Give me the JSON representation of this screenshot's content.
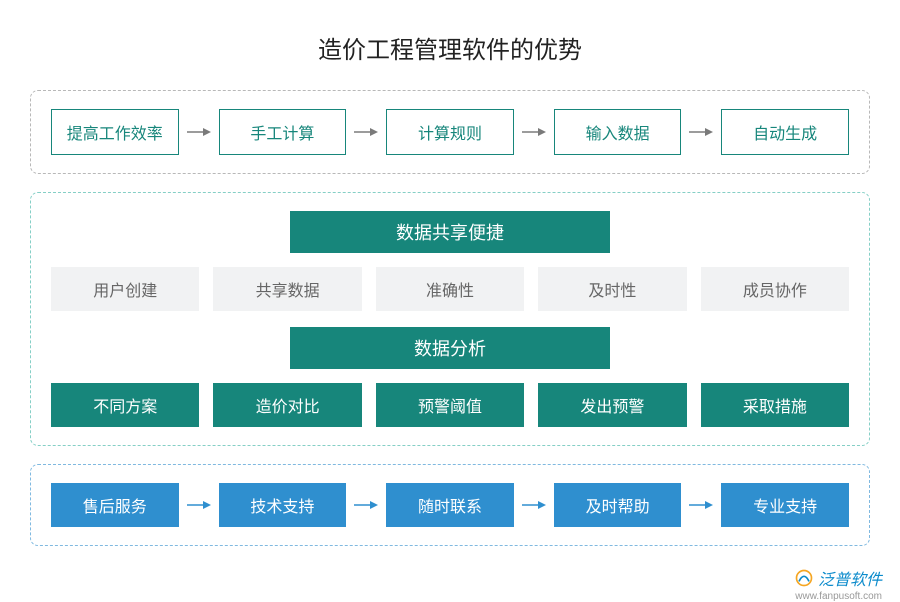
{
  "title": "造价工程管理软件的优势",
  "colors": {
    "teal": "#17867b",
    "teal_light_border": "#85cfc6",
    "grey_bg": "#f1f2f3",
    "grey_text": "#666666",
    "blue": "#2f8fcf",
    "blue_border": "#7fb9e0",
    "arrow_grey": "#7a7a7a",
    "arrow_blue": "#2f8fcf",
    "white": "#ffffff"
  },
  "section1": {
    "border_color": "#b8b8b8",
    "boxes": [
      "提高工作效率",
      "手工计算",
      "计算规则",
      "输入数据",
      "自动生成"
    ],
    "box_border": "#17867b",
    "box_text": "#17867b"
  },
  "section2": {
    "border_color": "#85cfc6",
    "header1": "数据共享便捷",
    "row1": [
      "用户创建",
      "共享数据",
      "准确性",
      "及时性",
      "成员协作"
    ],
    "header2": "数据分析",
    "row2": [
      "不同方案",
      "造价对比",
      "预警阈值",
      "发出预警",
      "采取措施"
    ],
    "header_bg": "#17867b",
    "row1_bg": "#f1f2f3",
    "row1_text": "#666666",
    "row2_bg": "#17867b",
    "row2_text": "#ffffff"
  },
  "section3": {
    "border_color": "#7fb9e0",
    "boxes": [
      "售后服务",
      "技术支持",
      "随时联系",
      "及时帮助",
      "专业支持"
    ],
    "box_bg": "#2f8fcf",
    "box_text": "#ffffff"
  },
  "watermark": {
    "text": "泛普软件",
    "url": "www.fanpusoft.com"
  }
}
